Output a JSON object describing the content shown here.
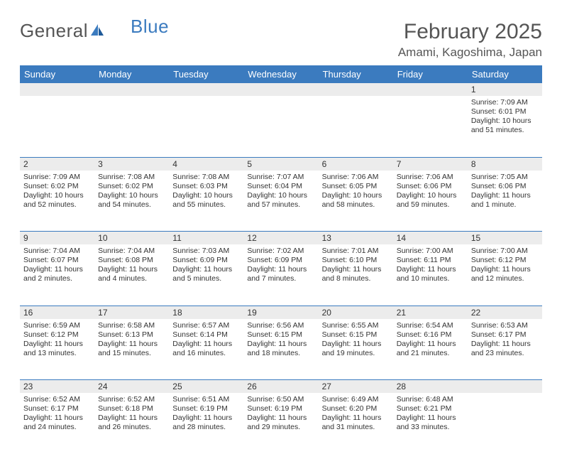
{
  "brand": {
    "part1": "General",
    "part2": "Blue"
  },
  "title": "February 2025",
  "location": "Amami, Kagoshima, Japan",
  "colors": {
    "header_bg": "#3b7bbf",
    "header_text": "#ffffff",
    "band_bg": "#ececec",
    "text": "#333333",
    "rule": "#3b7bbf",
    "page_bg": "#ffffff"
  },
  "days_of_week": [
    "Sunday",
    "Monday",
    "Tuesday",
    "Wednesday",
    "Thursday",
    "Friday",
    "Saturday"
  ],
  "weeks": [
    [
      null,
      null,
      null,
      null,
      null,
      null,
      {
        "n": "1",
        "sunrise": "7:09 AM",
        "sunset": "6:01 PM",
        "daylight": "10 hours and 51 minutes."
      }
    ],
    [
      {
        "n": "2",
        "sunrise": "7:09 AM",
        "sunset": "6:02 PM",
        "daylight": "10 hours and 52 minutes."
      },
      {
        "n": "3",
        "sunrise": "7:08 AM",
        "sunset": "6:02 PM",
        "daylight": "10 hours and 54 minutes."
      },
      {
        "n": "4",
        "sunrise": "7:08 AM",
        "sunset": "6:03 PM",
        "daylight": "10 hours and 55 minutes."
      },
      {
        "n": "5",
        "sunrise": "7:07 AM",
        "sunset": "6:04 PM",
        "daylight": "10 hours and 57 minutes."
      },
      {
        "n": "6",
        "sunrise": "7:06 AM",
        "sunset": "6:05 PM",
        "daylight": "10 hours and 58 minutes."
      },
      {
        "n": "7",
        "sunrise": "7:06 AM",
        "sunset": "6:06 PM",
        "daylight": "10 hours and 59 minutes."
      },
      {
        "n": "8",
        "sunrise": "7:05 AM",
        "sunset": "6:06 PM",
        "daylight": "11 hours and 1 minute."
      }
    ],
    [
      {
        "n": "9",
        "sunrise": "7:04 AM",
        "sunset": "6:07 PM",
        "daylight": "11 hours and 2 minutes."
      },
      {
        "n": "10",
        "sunrise": "7:04 AM",
        "sunset": "6:08 PM",
        "daylight": "11 hours and 4 minutes."
      },
      {
        "n": "11",
        "sunrise": "7:03 AM",
        "sunset": "6:09 PM",
        "daylight": "11 hours and 5 minutes."
      },
      {
        "n": "12",
        "sunrise": "7:02 AM",
        "sunset": "6:09 PM",
        "daylight": "11 hours and 7 minutes."
      },
      {
        "n": "13",
        "sunrise": "7:01 AM",
        "sunset": "6:10 PM",
        "daylight": "11 hours and 8 minutes."
      },
      {
        "n": "14",
        "sunrise": "7:00 AM",
        "sunset": "6:11 PM",
        "daylight": "11 hours and 10 minutes."
      },
      {
        "n": "15",
        "sunrise": "7:00 AM",
        "sunset": "6:12 PM",
        "daylight": "11 hours and 12 minutes."
      }
    ],
    [
      {
        "n": "16",
        "sunrise": "6:59 AM",
        "sunset": "6:12 PM",
        "daylight": "11 hours and 13 minutes."
      },
      {
        "n": "17",
        "sunrise": "6:58 AM",
        "sunset": "6:13 PM",
        "daylight": "11 hours and 15 minutes."
      },
      {
        "n": "18",
        "sunrise": "6:57 AM",
        "sunset": "6:14 PM",
        "daylight": "11 hours and 16 minutes."
      },
      {
        "n": "19",
        "sunrise": "6:56 AM",
        "sunset": "6:15 PM",
        "daylight": "11 hours and 18 minutes."
      },
      {
        "n": "20",
        "sunrise": "6:55 AM",
        "sunset": "6:15 PM",
        "daylight": "11 hours and 19 minutes."
      },
      {
        "n": "21",
        "sunrise": "6:54 AM",
        "sunset": "6:16 PM",
        "daylight": "11 hours and 21 minutes."
      },
      {
        "n": "22",
        "sunrise": "6:53 AM",
        "sunset": "6:17 PM",
        "daylight": "11 hours and 23 minutes."
      }
    ],
    [
      {
        "n": "23",
        "sunrise": "6:52 AM",
        "sunset": "6:17 PM",
        "daylight": "11 hours and 24 minutes."
      },
      {
        "n": "24",
        "sunrise": "6:52 AM",
        "sunset": "6:18 PM",
        "daylight": "11 hours and 26 minutes."
      },
      {
        "n": "25",
        "sunrise": "6:51 AM",
        "sunset": "6:19 PM",
        "daylight": "11 hours and 28 minutes."
      },
      {
        "n": "26",
        "sunrise": "6:50 AM",
        "sunset": "6:19 PM",
        "daylight": "11 hours and 29 minutes."
      },
      {
        "n": "27",
        "sunrise": "6:49 AM",
        "sunset": "6:20 PM",
        "daylight": "11 hours and 31 minutes."
      },
      {
        "n": "28",
        "sunrise": "6:48 AM",
        "sunset": "6:21 PM",
        "daylight": "11 hours and 33 minutes."
      },
      null
    ]
  ],
  "labels": {
    "sunrise": "Sunrise:",
    "sunset": "Sunset:",
    "daylight": "Daylight:"
  }
}
